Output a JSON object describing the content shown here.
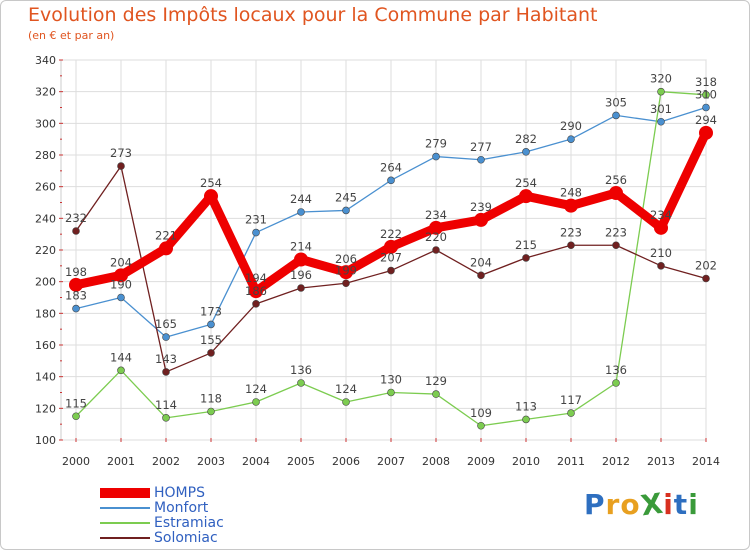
{
  "title": "Evolution des Impôts locaux pour la Commune par Habitant",
  "subtitle": "(en € et par an)",
  "logo": {
    "text": "ProXiti",
    "letters": [
      {
        "ch": "P",
        "color": "#2e6fc0"
      },
      {
        "ch": "r",
        "color": "#e8a020"
      },
      {
        "ch": "o",
        "color": "#e8a020"
      },
      {
        "ch": "X",
        "color": "#3a9a3a"
      },
      {
        "ch": "i",
        "color": "#d83020"
      },
      {
        "ch": "t",
        "color": "#2e6fc0"
      },
      {
        "ch": "i",
        "color": "#3a9a3a"
      }
    ]
  },
  "chart_data": {
    "type": "line",
    "title": "Evolution des Impôts locaux pour la Commune par Habitant",
    "subtitle": "(en € et par an)",
    "x": [
      "2000",
      "2001",
      "2002",
      "2003",
      "2004",
      "2005",
      "2006",
      "2007",
      "2008",
      "2009",
      "2010",
      "2011",
      "2012",
      "2013",
      "2014"
    ],
    "ylim": [
      100,
      340
    ],
    "yticks": [
      100,
      120,
      140,
      160,
      180,
      200,
      220,
      240,
      260,
      280,
      300,
      320,
      340
    ],
    "grid": true,
    "legend_position": "bottom-left",
    "series": [
      {
        "name": "HOMPS",
        "color": "#ee0000",
        "values": [
          198,
          204,
          221,
          254,
          194,
          214,
          206,
          222,
          234,
          239,
          254,
          248,
          256,
          234,
          294
        ]
      },
      {
        "name": "Monfort",
        "color": "#4a90d0",
        "values": [
          183,
          190,
          165,
          173,
          231,
          244,
          245,
          264,
          279,
          277,
          282,
          290,
          305,
          301,
          310
        ]
      },
      {
        "name": "Estramiac",
        "color": "#7ccc50",
        "values": [
          115,
          144,
          114,
          118,
          124,
          136,
          124,
          130,
          129,
          109,
          113,
          117,
          136,
          320,
          318
        ]
      },
      {
        "name": "Solomiac",
        "color": "#702020",
        "values": [
          232,
          273,
          143,
          155,
          186,
          196,
          199,
          207,
          220,
          204,
          215,
          223,
          223,
          210,
          202
        ]
      }
    ]
  }
}
